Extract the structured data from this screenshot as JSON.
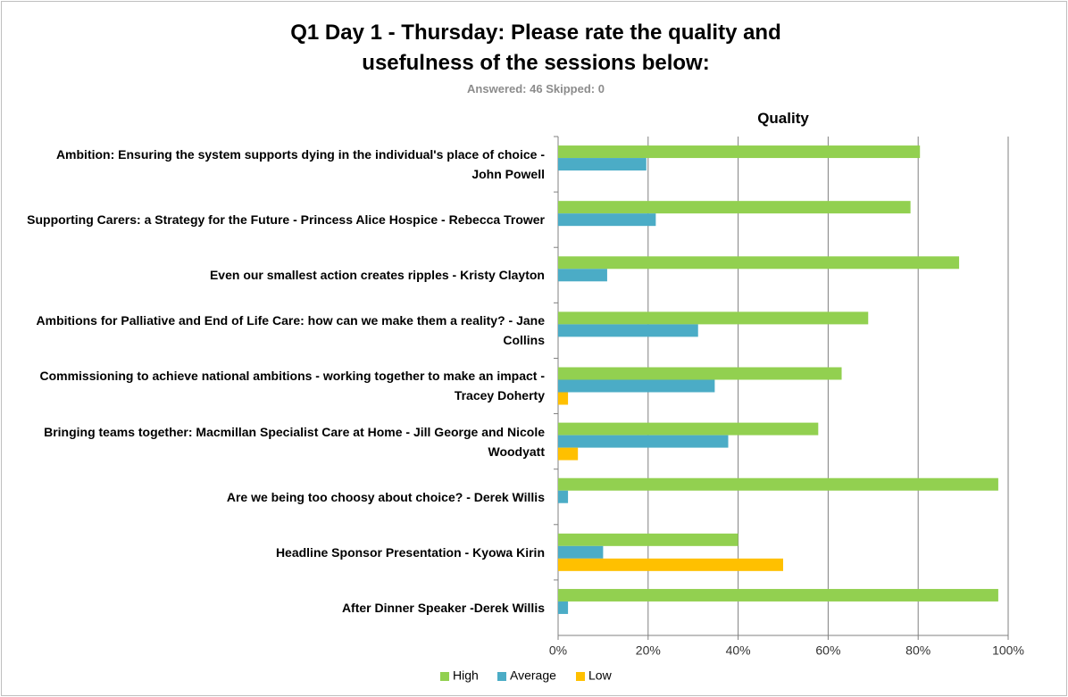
{
  "chart_data": {
    "type": "bar",
    "orientation": "horizontal",
    "title": "Q1 Day 1 - Thursday: Please rate the quality and usefulness of the sessions below:",
    "subtitle": "Answered: 46 Skipped: 0",
    "panel_title": "Quality",
    "categories": [
      "Ambition: Ensuring the system supports dying in the individual's place of choice - John Powell",
      "Supporting Carers: a Strategy for the Future - Princess Alice Hospice - Rebecca Trower",
      "Even our smallest action creates ripples - Kristy Clayton",
      "Ambitions for Palliative and End of Life Care: how can we make them a reality? - Jane Collins",
      "Commissioning to achieve national ambitions - working together to make an impact - Tracey Doherty",
      "Bringing teams together: Macmillan Specialist Care at Home - Jill George and Nicole Woodyatt",
      "Are we being too choosy about choice? - Derek Willis",
      "Headline Sponsor Presentation - Kyowa Kirin",
      "After Dinner Speaker -Derek Willis"
    ],
    "series": [
      {
        "name": "High",
        "color": "#92d050",
        "values": [
          80.4,
          78.3,
          89.1,
          68.9,
          63.0,
          57.8,
          97.8,
          40,
          97.8
        ]
      },
      {
        "name": "Average",
        "color": "#4bacc6",
        "values": [
          19.6,
          21.7,
          10.9,
          31.1,
          34.8,
          37.8,
          2.2,
          10,
          2.2
        ]
      },
      {
        "name": "Low",
        "color": "#ffc000",
        "values": [
          0,
          0,
          0,
          0,
          2.2,
          4.4,
          0,
          50,
          0
        ]
      }
    ],
    "xlim": [
      0,
      100
    ],
    "xticks": [
      {
        "value": 0,
        "label": "0%"
      },
      {
        "value": 20,
        "label": "20%"
      },
      {
        "value": 40,
        "label": "40%"
      },
      {
        "value": 60,
        "label": "60%"
      },
      {
        "value": 80,
        "label": "80%"
      },
      {
        "value": 100,
        "label": "100%"
      }
    ],
    "grid": true,
    "legend": "bottom"
  }
}
